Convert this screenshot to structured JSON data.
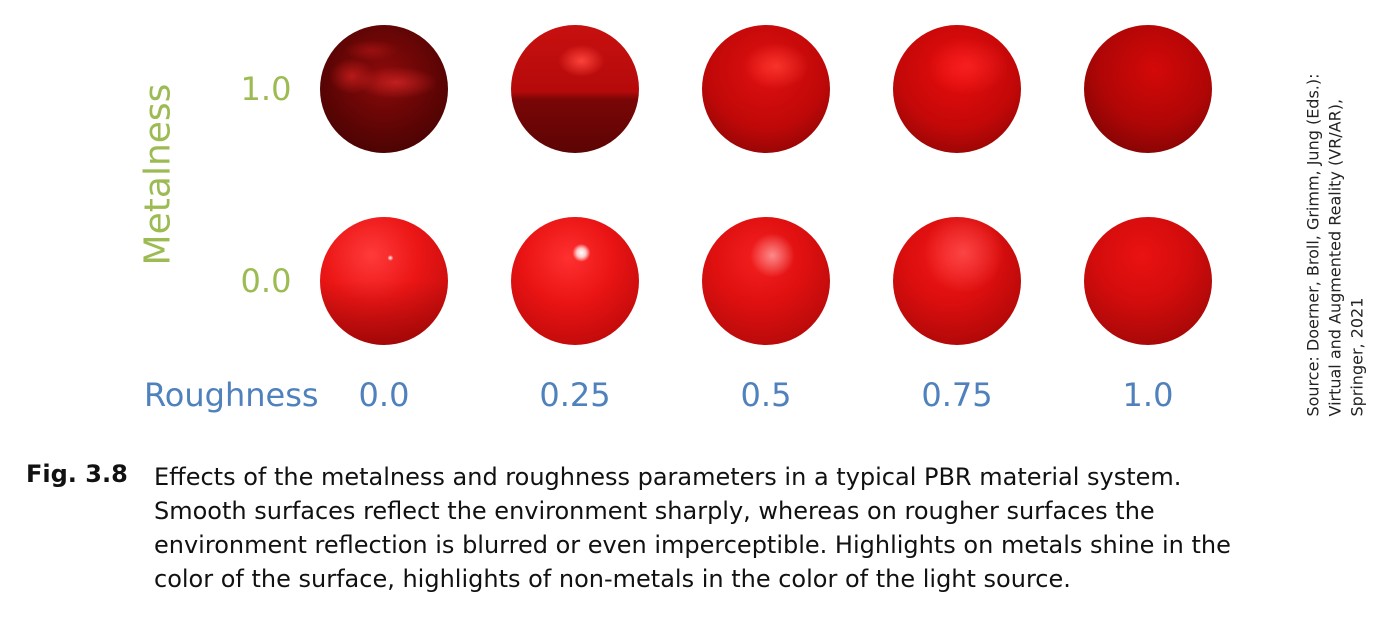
{
  "figure": {
    "metalness_label": "Metalness",
    "metalness_values": [
      "1.0",
      "0.0"
    ],
    "roughness_label": "Roughness",
    "roughness_values": [
      "0.0",
      "0.25",
      "0.5",
      "0.75",
      "1.0"
    ],
    "sphere_color": "#d40c0c",
    "metalness_color": "#9dbb53",
    "roughness_color": "#4f81bd"
  },
  "source": {
    "lines": [
      "Source: Doerner, Broll, Grimm, Jung (Eds.):",
      "Virtual and Augmented Reality (VR/AR),",
      "Springer, 2021"
    ]
  },
  "caption": {
    "label": "Fig. 3.8",
    "lines": [
      "Effects of the metalness and roughness parameters in a typical PBR material system.",
      "Smooth surfaces reflect the environment sharply, whereas on rougher surfaces the",
      "environment reflection is blurred or even imperceptible. Highlights on metals shine in the",
      "color of the surface, highlights of non-metals in the color of the light source."
    ]
  }
}
